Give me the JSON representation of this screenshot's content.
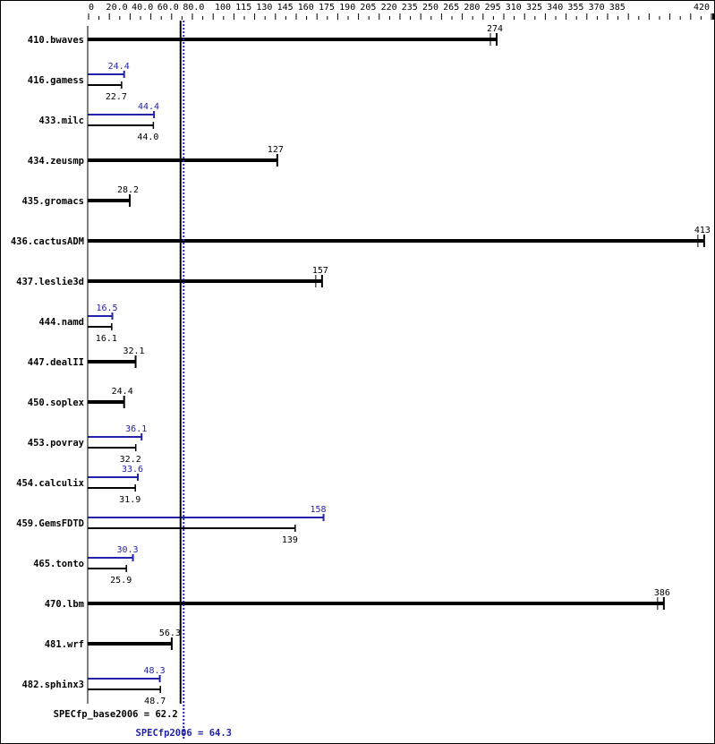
{
  "chart_data": {
    "type": "bar",
    "orientation": "horizontal",
    "axis_position": "top",
    "xlim": [
      0,
      420
    ],
    "x_tick_labels": [
      "0",
      "20.0",
      "40.0",
      "60.0",
      "80.0",
      "100",
      "115",
      "130",
      "145",
      "160",
      "175",
      "190",
      "205",
      "220",
      "235",
      "250",
      "265",
      "280",
      "295",
      "310",
      "325",
      "340",
      "355",
      "370",
      "385",
      "420"
    ],
    "colors": {
      "base": "#000000",
      "peak": "#2222aa"
    },
    "categories": [
      "410.bwaves",
      "416.gamess",
      "433.milc",
      "434.zeusmp",
      "435.gromacs",
      "436.cactusADM",
      "437.leslie3d",
      "444.namd",
      "447.dealII",
      "450.soplex",
      "453.povray",
      "454.calculix",
      "459.GemsFDTD",
      "465.tonto",
      "470.lbm",
      "481.wrf",
      "482.sphinx3"
    ],
    "series": [
      {
        "name": "base",
        "values": [
          274,
          22.7,
          44.0,
          127,
          28.2,
          413,
          157,
          16.1,
          32.1,
          24.4,
          32.2,
          31.9,
          139,
          25.9,
          386,
          56.3,
          48.7
        ],
        "labels": [
          "274",
          "22.7",
          "44.0",
          "127",
          "28.2",
          "413",
          "157",
          "16.1",
          "32.1",
          "24.4",
          "32.2",
          "31.9",
          "139",
          "25.9",
          "386",
          "56.3",
          "48.7"
        ]
      },
      {
        "name": "peak",
        "values": [
          null,
          24.4,
          44.4,
          null,
          null,
          null,
          null,
          16.5,
          null,
          null,
          36.1,
          33.6,
          158,
          30.3,
          null,
          null,
          48.3
        ],
        "labels": [
          null,
          "24.4",
          "44.4",
          null,
          null,
          null,
          null,
          "16.5",
          null,
          null,
          "36.1",
          "33.6",
          "158",
          "30.3",
          null,
          null,
          "48.3"
        ]
      }
    ],
    "reference_lines": [
      {
        "label": "SPECfp_base2006 = 62.2",
        "value": 62.2,
        "style": "solid",
        "color": "#000000"
      },
      {
        "label": "SPECfp2006 = 64.3",
        "value": 64.3,
        "style": "dotted",
        "color": "#2222aa"
      }
    ]
  }
}
